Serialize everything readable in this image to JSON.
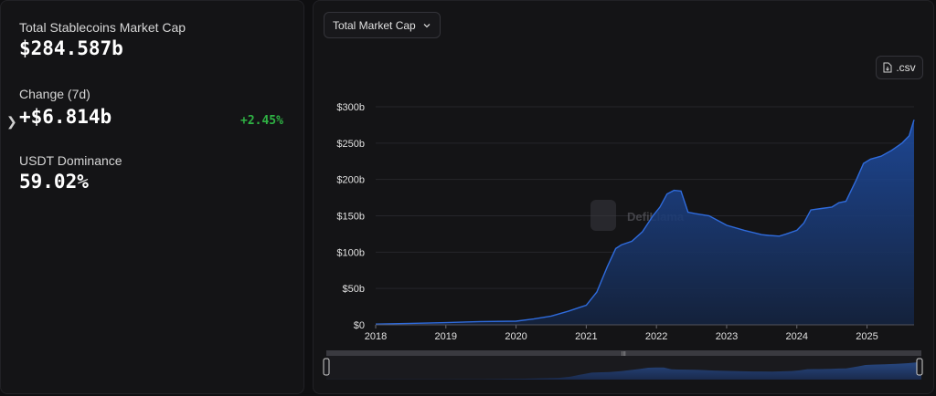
{
  "stats": {
    "market_cap_label": "Total Stablecoins Market Cap",
    "market_cap_value": "$284.587b",
    "change_label": "Change (7d)",
    "change_value": "+$6.814b",
    "change_pct": "+2.45%",
    "dominance_label": "USDT Dominance",
    "dominance_value": "59.02%"
  },
  "controls": {
    "dropdown_label": "Total Market Cap",
    "csv_label": ".csv"
  },
  "watermark": "DefiLlama",
  "colors": {
    "accent": "#2a5fc4",
    "positive": "#2fb344",
    "background": "#141416"
  },
  "chart_data": {
    "type": "area",
    "y_tick_labels": [
      "$0",
      "$50b",
      "$100b",
      "$150b",
      "$200b",
      "$250b",
      "$300b"
    ],
    "y_ticks": [
      0,
      50,
      100,
      150,
      200,
      250,
      300
    ],
    "x_tick_labels": [
      "2018",
      "2019",
      "2020",
      "2021",
      "2022",
      "2023",
      "2024",
      "2025"
    ],
    "x_ticks": [
      2018,
      2019,
      2020,
      2021,
      2022,
      2023,
      2024,
      2025
    ],
    "xlim": [
      2018.0,
      2025.67
    ],
    "ylim": [
      0,
      300
    ],
    "grid": true,
    "series": [
      {
        "x": [
          2018.0,
          2018.5,
          2019.0,
          2019.5,
          2020.0,
          2020.25,
          2020.5,
          2020.75,
          2021.0,
          2021.15,
          2021.3,
          2021.42,
          2021.5,
          2021.65,
          2021.8,
          2021.95,
          2022.05,
          2022.15,
          2022.25,
          2022.35,
          2022.45,
          2022.55,
          2022.75,
          2023.0,
          2023.25,
          2023.5,
          2023.6,
          2023.75,
          2023.85,
          2024.0,
          2024.1,
          2024.2,
          2024.35,
          2024.5,
          2024.6,
          2024.7,
          2024.85,
          2024.95,
          2025.05,
          2025.2,
          2025.35,
          2025.5,
          2025.6,
          2025.67
        ],
        "values": [
          1,
          2,
          3,
          4.5,
          5,
          8,
          12,
          19,
          27,
          45,
          80,
          105,
          110,
          115,
          128,
          150,
          162,
          180,
          185,
          184,
          155,
          153,
          150,
          137,
          130,
          124,
          123,
          122,
          125,
          130,
          140,
          158,
          160,
          162,
          168,
          170,
          200,
          222,
          228,
          232,
          240,
          250,
          260,
          282
        ]
      }
    ]
  }
}
